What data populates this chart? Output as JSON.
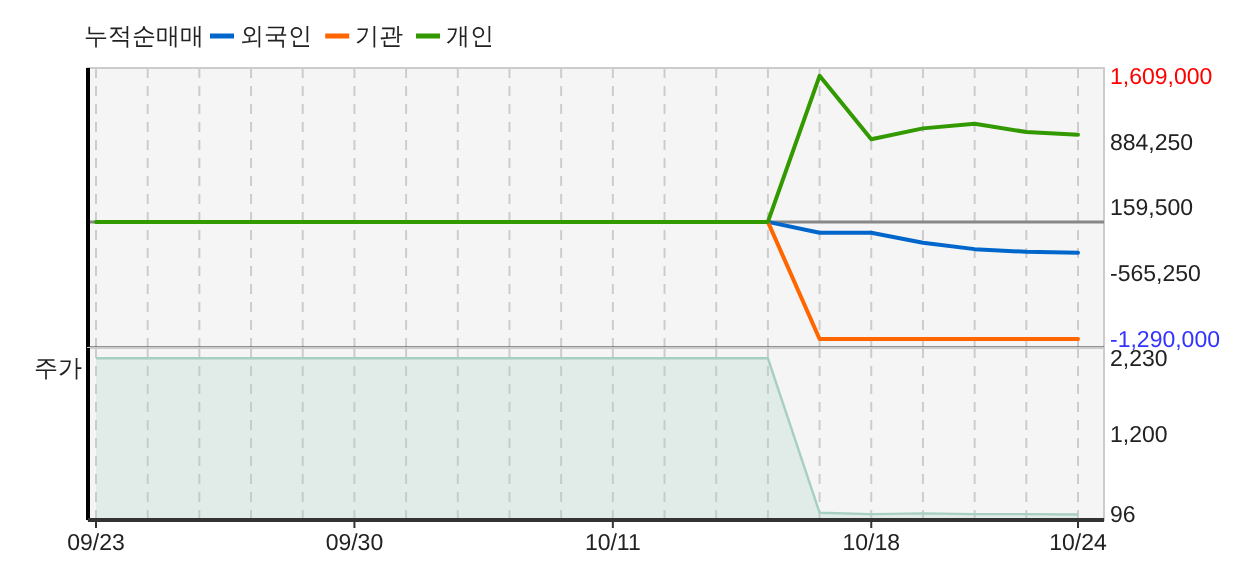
{
  "chart_data": [
    {
      "type": "line",
      "legend_title": "누적순매매",
      "legend": "top left",
      "grid": "x",
      "tick_labels": "y",
      "categories": [
        null,
        null,
        null,
        null,
        null,
        null,
        null,
        null,
        null,
        null,
        null,
        null,
        null,
        null,
        null,
        null,
        null,
        null,
        null,
        null
      ],
      "series": [
        {
          "name": "외국인",
          "color": "#0066cc",
          "values": [
            null,
            null,
            null,
            null,
            null,
            null,
            null,
            null,
            null,
            null,
            null,
            null,
            null,
            0,
            -120000,
            -120000,
            -230000,
            -300000,
            -330000,
            -340000
          ]
        },
        {
          "name": "기관",
          "color": "#ff6600",
          "values": [
            null,
            null,
            null,
            null,
            null,
            null,
            null,
            null,
            null,
            null,
            null,
            null,
            null,
            0,
            -1290000,
            -1290000,
            -1290000,
            -1290000,
            -1290000,
            -1290000
          ]
        },
        {
          "name": "개인",
          "color": "#339900",
          "values": [
            0,
            0,
            0,
            0,
            0,
            0,
            0,
            0,
            0,
            0,
            0,
            0,
            0,
            0,
            1609000,
            910000,
            1030000,
            1080000,
            990000,
            960000
          ]
        }
      ],
      "ylim": [
        -1389000,
        1695000
      ],
      "yticks": [
        {
          "value": 1609000,
          "label": "1,609,000"
        },
        {
          "value": 884250,
          "label": "884,250"
        },
        {
          "value": 159500,
          "label": "159,500"
        },
        {
          "value": -565250,
          "label": "-565,250"
        },
        {
          "value": -1290000,
          "label": "-1,290,000"
        }
      ],
      "ref_lines": [
        {
          "axis": "y",
          "value": 0,
          "color": "#888888"
        }
      ]
    },
    {
      "type": "area",
      "ylabel": "주가",
      "grid": "x",
      "categories": [
        "09/23",
        null,
        null,
        null,
        null,
        "09/30",
        null,
        null,
        null,
        null,
        "10/11",
        null,
        null,
        null,
        null,
        "10/18",
        null,
        null,
        null,
        "10/24"
      ],
      "series": [
        {
          "color": "#a8d0c0",
          "values": [
            2230,
            2230,
            2230,
            2230,
            2230,
            2230,
            2230,
            2230,
            2230,
            2230,
            2230,
            2230,
            2230,
            2230,
            120,
            100,
            110,
            100,
            100,
            96
          ]
        }
      ],
      "ylim": [
        20,
        2370
      ],
      "yticks": [
        {
          "value": 2230,
          "label": "2,230"
        },
        {
          "value": 1200,
          "label": "1,200"
        },
        96
      ]
    }
  ]
}
